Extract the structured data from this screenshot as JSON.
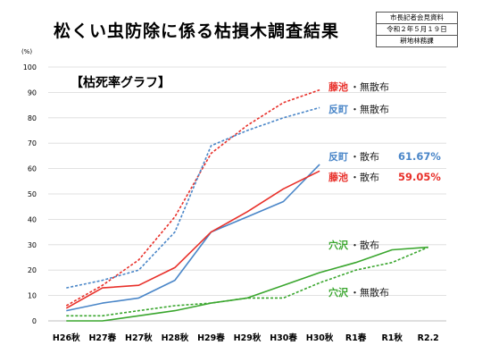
{
  "header": {
    "title": "松くい虫防除に係る枯損木調査結果",
    "info_box": [
      "市長記者会見資料",
      "令和２年５月１９日",
      "耕地林務課"
    ]
  },
  "chart_data": {
    "type": "line",
    "title": "【枯死率グラフ】",
    "y_unit": "(%)",
    "ylim": [
      0,
      100
    ],
    "y_ticks": [
      0,
      10,
      20,
      30,
      40,
      50,
      60,
      70,
      80,
      90,
      100
    ],
    "categories": [
      "H26秋",
      "H27春",
      "H27秋",
      "H28秋",
      "H29春",
      "H29秋",
      "H30春",
      "H30秋",
      "R1春",
      "R1秋",
      "R2.2"
    ],
    "grid": true,
    "colors": {
      "red": "#e8302a",
      "blue": "#4a86c8",
      "green": "#3aa62e"
    },
    "series": [
      {
        "name": "藤池・無散布",
        "color": "#e8302a",
        "dashed": true,
        "values": [
          6,
          14,
          24,
          41,
          66,
          77,
          86,
          91,
          null,
          null,
          null
        ]
      },
      {
        "name": "反町・無散布",
        "color": "#4a86c8",
        "dashed": true,
        "values": [
          13,
          16,
          20,
          35,
          69,
          75,
          80,
          84,
          null,
          null,
          null
        ]
      },
      {
        "name": "反町・散布",
        "color": "#4a86c8",
        "dashed": false,
        "values": [
          4,
          7,
          9,
          16,
          35,
          41,
          47,
          61.67,
          null,
          null,
          null
        ]
      },
      {
        "name": "藤池・散布",
        "color": "#e8302a",
        "dashed": false,
        "values": [
          5,
          13,
          14,
          21,
          35,
          43,
          52,
          59.05,
          null,
          null,
          null
        ]
      },
      {
        "name": "穴沢・散布",
        "color": "#3aa62e",
        "dashed": false,
        "values": [
          0,
          0,
          2,
          4,
          7,
          9,
          14,
          19,
          23,
          28,
          29
        ]
      },
      {
        "name": "穴沢・無散布",
        "color": "#3aa62e",
        "dashed": true,
        "values": [
          2,
          2,
          4,
          6,
          7,
          9,
          9,
          15,
          20,
          23,
          29
        ]
      }
    ],
    "labels": [
      {
        "place": "藤池",
        "kind": "・無散布",
        "color": "#e8302a",
        "value": ""
      },
      {
        "place": "反町",
        "kind": "・無散布",
        "color": "#4a86c8",
        "value": ""
      },
      {
        "place": "反町",
        "kind": "・散布",
        "color": "#4a86c8",
        "value": "61.67%"
      },
      {
        "place": "藤池",
        "kind": "・散布",
        "color": "#e8302a",
        "value": "59.05%"
      },
      {
        "place": "穴沢",
        "kind": "・散布",
        "color": "#3aa62e",
        "value": ""
      },
      {
        "place": "穴沢",
        "kind": "・無散布",
        "color": "#3aa62e",
        "value": ""
      }
    ]
  }
}
